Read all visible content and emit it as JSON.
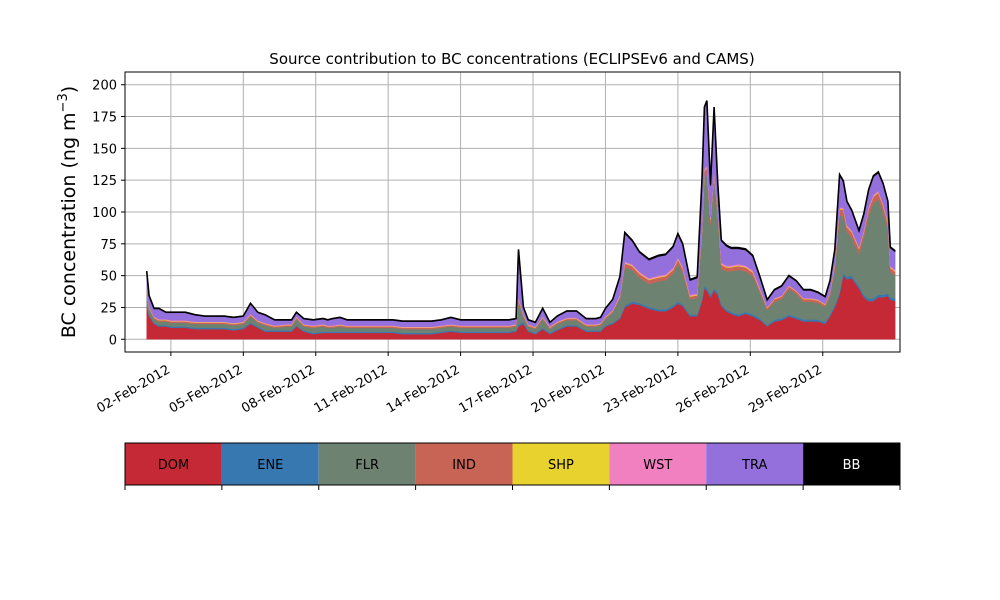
{
  "chart_data": {
    "type": "area",
    "title": "Source contribution to BC concentrations (ECLIPSEv6 and CAMS)",
    "ylabel_main": "BC concentration (ng m",
    "ylabel_sup": "−3",
    "ylabel_close": ")",
    "xlabel": "",
    "ylim": [
      -10,
      210
    ],
    "xlim": [
      -0.9,
      31.2
    ],
    "grid": true,
    "yticks": [
      0,
      25,
      50,
      75,
      100,
      125,
      150,
      175,
      200
    ],
    "xticks": [
      {
        "day": 2,
        "label": "02-Feb-2012"
      },
      {
        "day": 5,
        "label": "05-Feb-2012"
      },
      {
        "day": 8,
        "label": "08-Feb-2012"
      },
      {
        "day": 11,
        "label": "11-Feb-2012"
      },
      {
        "day": 14,
        "label": "14-Feb-2012"
      },
      {
        "day": 17,
        "label": "17-Feb-2012"
      },
      {
        "day": 20,
        "label": "20-Feb-2012"
      },
      {
        "day": 23,
        "label": "23-Feb-2012"
      },
      {
        "day": 26,
        "label": "26-Feb-2012"
      },
      {
        "day": 29,
        "label": "29-Feb-2012"
      }
    ],
    "x_day_offset": 1,
    "x": [
      0,
      0.1,
      0.3,
      0.5,
      0.8,
      1,
      1.3,
      1.6,
      2,
      2.4,
      2.8,
      3.2,
      3.6,
      4,
      4.3,
      4.6,
      4.9,
      5.3,
      5.8,
      6,
      6.2,
      6.5,
      6.9,
      7.3,
      7.5,
      7.7,
      8,
      8.3,
      8.6,
      9,
      9.4,
      9.8,
      10.2,
      10.6,
      11,
      11.4,
      11.8,
      12.2,
      12.6,
      13,
      13.4,
      13.8,
      14.2,
      14.6,
      15,
      15.3,
      15.4,
      15.6,
      15.8,
      16.1,
      16.4,
      16.7,
      17,
      17.4,
      17.8,
      18.2,
      18.6,
      18.8,
      19,
      19.3,
      19.6,
      19.8,
      20.1,
      20.4,
      20.8,
      21.2,
      21.5,
      21.8,
      22,
      22.2,
      22.5,
      22.8,
      23,
      23.1,
      23.2,
      23.35,
      23.5,
      23.65,
      23.8,
      24,
      24.2,
      24.5,
      24.8,
      25.1,
      25.4,
      25.7,
      26,
      26.3,
      26.6,
      26.9,
      27.2,
      27.5,
      27.8,
      28.1,
      28.3,
      28.5,
      28.7,
      28.85,
      29,
      29.2,
      29.5,
      29.7,
      29.9,
      30.1,
      30.3,
      30.5,
      30.7,
      30.8,
      31
    ],
    "series": [
      {
        "name": "DOM",
        "color": "#c62936",
        "values": [
          25,
          18,
          12,
          10,
          10,
          9,
          9,
          9,
          8,
          8,
          8,
          8,
          7,
          8,
          12,
          9,
          6,
          6,
          6,
          6,
          10,
          6,
          4,
          5,
          5,
          5,
          5,
          5,
          5,
          5,
          5,
          5,
          5,
          4,
          4,
          4,
          4,
          5,
          6,
          5,
          5,
          5,
          5,
          5,
          5,
          6,
          10,
          12,
          6,
          4,
          8,
          4,
          7,
          10,
          10,
          6,
          6,
          6,
          10,
          12,
          16,
          25,
          28,
          27,
          24,
          22,
          22,
          25,
          28,
          26,
          18,
          18,
          30,
          40,
          38,
          33,
          38,
          35,
          26,
          22,
          20,
          18,
          20,
          18,
          15,
          10,
          14,
          15,
          18,
          16,
          14,
          14,
          14,
          12,
          18,
          25,
          35,
          50,
          47,
          48,
          40,
          33,
          30,
          30,
          33,
          33,
          34,
          31,
          30
        ]
      },
      {
        "name": "ENE",
        "color": "#3778b0",
        "values": [
          2,
          1.5,
          1,
          1,
          1,
          1,
          1,
          1,
          1,
          1,
          1,
          1,
          1,
          1,
          1,
          1,
          1,
          1,
          1,
          1,
          1,
          1,
          1,
          1,
          1,
          1,
          1,
          1,
          1,
          1,
          1,
          1,
          1,
          1,
          1,
          1,
          1,
          1,
          1,
          1,
          1,
          1,
          1,
          1,
          1,
          1,
          1.5,
          1.5,
          1,
          1,
          1,
          1,
          1,
          1,
          1,
          1,
          1,
          1,
          1,
          1,
          1,
          1.5,
          1.5,
          1.5,
          1.5,
          1.5,
          1.5,
          1.5,
          1.5,
          1.5,
          1.5,
          1.5,
          1.5,
          2,
          2,
          2,
          2,
          2,
          1.5,
          1.5,
          1.5,
          1.5,
          1.5,
          1.5,
          1.5,
          1,
          1.5,
          1.5,
          1.5,
          1.5,
          1.5,
          1.5,
          1.5,
          1.5,
          1.5,
          2,
          2,
          2,
          2,
          2,
          2,
          2,
          2,
          2,
          2,
          2,
          2,
          2,
          2
        ]
      },
      {
        "name": "FLR",
        "color": "#6e8272",
        "values": [
          8,
          4,
          3,
          3,
          3,
          3,
          3,
          3,
          3,
          3,
          3,
          3,
          3,
          3,
          5,
          3,
          4,
          2,
          3,
          3,
          5,
          3,
          4,
          4,
          3,
          3,
          4,
          3,
          3,
          3,
          3,
          3,
          3,
          3,
          3,
          3,
          3,
          3,
          3,
          3,
          3,
          3,
          3,
          3,
          3,
          3,
          18,
          4,
          3,
          3,
          7,
          3,
          4,
          4,
          4,
          3,
          3,
          4,
          5,
          8,
          15,
          30,
          25,
          20,
          18,
          22,
          23,
          25,
          30,
          25,
          12,
          13,
          50,
          85,
          90,
          55,
          85,
          60,
          28,
          30,
          32,
          35,
          32,
          30,
          20,
          12,
          14,
          15,
          20,
          18,
          14,
          14,
          13,
          12,
          15,
          28,
          60,
          45,
          35,
          30,
          25,
          45,
          65,
          75,
          75,
          65,
          50,
          20,
          18
        ]
      },
      {
        "name": "IND",
        "color": "#c86455",
        "values": [
          2,
          1.5,
          1,
          1,
          1,
          1,
          1,
          1,
          1,
          1,
          1,
          1,
          1,
          1,
          1,
          1,
          1,
          1,
          1,
          1,
          1,
          1,
          1,
          1,
          1,
          1,
          1,
          1,
          1,
          1,
          1,
          1,
          1,
          1,
          1,
          1,
          1,
          1,
          1,
          1,
          1,
          1,
          1,
          1,
          1,
          1,
          2,
          1.5,
          1,
          1,
          1,
          1,
          1,
          1,
          1,
          1,
          1,
          1,
          1,
          1,
          1.5,
          3,
          3,
          3,
          3,
          3,
          3,
          3,
          3,
          3,
          2,
          2,
          4,
          5,
          5,
          4,
          5,
          4,
          3,
          3,
          3,
          3,
          3,
          3,
          2,
          1.5,
          2,
          2,
          2,
          2,
          2,
          2,
          2,
          1.5,
          2,
          3,
          5,
          5,
          4,
          4,
          4,
          4,
          5,
          5,
          5,
          5,
          5,
          3,
          3
        ]
      },
      {
        "name": "SHP",
        "color": "#e8d22e",
        "values": [
          0.3,
          0.3,
          0.3,
          0.3,
          0.3,
          0.3,
          0.3,
          0.3,
          0.3,
          0.3,
          0.3,
          0.3,
          0.3,
          0.3,
          0.3,
          0.3,
          0.3,
          0.3,
          0.3,
          0.3,
          0.3,
          0.3,
          0.3,
          0.3,
          0.3,
          0.3,
          0.3,
          0.3,
          0.3,
          0.3,
          0.3,
          0.3,
          0.3,
          0.3,
          0.3,
          0.3,
          0.3,
          0.3,
          0.3,
          0.3,
          0.3,
          0.3,
          0.3,
          0.3,
          0.3,
          0.3,
          0.3,
          0.3,
          0.3,
          0.3,
          0.3,
          0.3,
          0.3,
          0.3,
          0.3,
          0.3,
          0.3,
          0.3,
          0.3,
          0.3,
          0.3,
          0.5,
          0.5,
          0.5,
          0.5,
          0.5,
          0.5,
          0.5,
          0.5,
          0.5,
          0.5,
          0.5,
          0.5,
          0.5,
          0.5,
          0.5,
          0.5,
          0.5,
          0.5,
          0.5,
          0.5,
          0.5,
          0.5,
          0.5,
          0.5,
          0.3,
          0.3,
          0.3,
          0.3,
          0.3,
          0.3,
          0.3,
          0.3,
          0.3,
          0.3,
          0.5,
          0.5,
          0.5,
          0.5,
          0.5,
          0.5,
          0.5,
          0.5,
          0.5,
          0.5,
          0.5,
          0.5,
          0.5,
          0.5
        ]
      },
      {
        "name": "WST",
        "color": "#f080c0",
        "values": [
          0.5,
          0.5,
          0.5,
          0.5,
          0.5,
          0.5,
          0.5,
          0.5,
          0.5,
          0.5,
          0.5,
          0.5,
          0.5,
          0.5,
          0.5,
          0.5,
          0.5,
          0.5,
          0.5,
          0.5,
          0.5,
          0.5,
          0.5,
          0.5,
          0.5,
          0.5,
          0.5,
          0.5,
          0.5,
          0.5,
          0.5,
          0.5,
          0.5,
          0.5,
          0.5,
          0.5,
          0.5,
          0.5,
          0.5,
          0.5,
          0.5,
          0.5,
          0.5,
          0.5,
          0.5,
          0.5,
          1,
          0.5,
          0.5,
          0.5,
          0.5,
          0.5,
          0.5,
          0.5,
          0.5,
          0.5,
          0.5,
          0.5,
          0.5,
          0.5,
          1,
          1,
          1,
          1,
          1,
          1,
          1,
          1,
          1,
          1,
          1,
          1,
          1,
          1,
          1,
          1,
          1,
          1,
          1,
          1,
          1,
          1,
          1,
          1,
          1,
          0.5,
          0.5,
          0.5,
          0.5,
          0.5,
          0.5,
          0.5,
          0.5,
          0.5,
          0.5,
          1,
          1,
          1,
          1,
          1,
          1,
          1,
          1,
          1,
          1,
          1,
          1,
          1,
          1
        ]
      },
      {
        "name": "TRA",
        "color": "#9370db",
        "values": [
          15,
          8,
          6,
          8,
          5,
          6,
          6,
          6,
          5,
          4,
          4,
          4,
          4,
          4,
          8,
          6,
          6,
          4,
          3,
          3,
          3,
          4,
          4,
          4,
          4,
          5,
          5,
          4,
          4,
          4,
          4,
          4,
          4,
          4,
          4,
          4,
          4,
          4,
          5,
          4,
          4,
          4,
          4,
          4,
          4,
          4,
          37,
          5,
          3,
          3,
          6,
          3,
          4,
          5,
          5,
          4,
          4,
          4,
          6,
          8,
          14,
          22,
          18,
          15,
          14,
          15,
          15,
          16,
          18,
          17,
          11,
          12,
          38,
          48,
          50,
          25,
          50,
          20,
          17,
          15,
          13,
          12,
          12,
          11,
          8,
          5,
          6,
          7,
          7,
          7,
          6,
          6,
          5,
          5,
          8,
          10,
          25,
          20,
          18,
          15,
          12,
          12,
          13,
          14,
          14,
          15,
          15,
          14,
          14
        ]
      },
      {
        "name": "BB",
        "color": "#000000",
        "values": [
          0.8,
          0.5,
          0.5,
          0.5,
          0.5,
          0.5,
          0.5,
          0.5,
          0.5,
          0.5,
          0.5,
          0.5,
          0.5,
          0.5,
          0.5,
          0.5,
          0.5,
          0.5,
          0.5,
          0.5,
          0.5,
          0.5,
          0.5,
          0.5,
          0.5,
          0.5,
          0.5,
          0.5,
          0.5,
          0.5,
          0.5,
          0.5,
          0.5,
          0.5,
          0.5,
          0.5,
          0.5,
          0.5,
          0.5,
          0.5,
          0.5,
          0.5,
          0.5,
          0.5,
          0.5,
          0.5,
          0.8,
          0.5,
          0.5,
          0.5,
          0.5,
          0.5,
          0.5,
          0.5,
          0.5,
          0.5,
          0.5,
          0.5,
          0.5,
          0.5,
          0.5,
          1,
          1,
          1,
          1,
          1,
          1,
          1,
          1,
          1,
          1,
          1,
          1,
          1,
          1,
          1,
          1,
          1,
          1,
          1,
          1,
          1,
          1,
          1,
          1,
          0.8,
          0.8,
          0.8,
          0.8,
          0.8,
          0.8,
          0.8,
          0.8,
          0.8,
          0.8,
          1,
          1,
          1,
          1,
          1,
          1,
          1,
          1,
          1,
          1,
          1,
          1,
          1,
          1
        ]
      }
    ]
  }
}
